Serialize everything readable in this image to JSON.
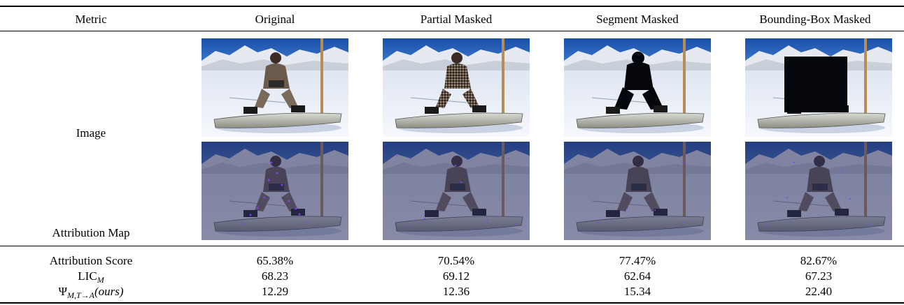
{
  "table": {
    "headers": [
      "Metric",
      "Original",
      "Partial Masked",
      "Segment Masked",
      "Bounding-Box Masked"
    ],
    "row_labels": {
      "image": "Image",
      "attribution_map": "Attribution Map"
    },
    "image_alts": {
      "original": "snowboarder sitting on snow",
      "partial": "snowboarder partially masked with noise",
      "segment": "snowboarder masked by black segment",
      "bbox": "snowboarder masked by black bounding box"
    },
    "metrics": [
      {
        "label_main": "Attribution Score",
        "label_sub": "",
        "values": [
          "65.38%",
          "70.54%",
          "77.47%",
          "82.67%"
        ]
      },
      {
        "label_main": "LIC",
        "label_sub": "M",
        "values": [
          "68.23",
          "69.12",
          "62.64",
          "67.23"
        ]
      },
      {
        "label_main": "Ψ",
        "label_sub": "M,T→A",
        "label_suffix": "(ours)",
        "values": [
          "12.29",
          "12.36",
          "15.34",
          "22.40"
        ]
      }
    ]
  },
  "colors": {
    "sky": "#1f5fb8",
    "snow": "#eef2f8",
    "mask": "#05060c",
    "attribution_tint": "#4a4f7a",
    "attribution_dots": "#8a3cff"
  }
}
